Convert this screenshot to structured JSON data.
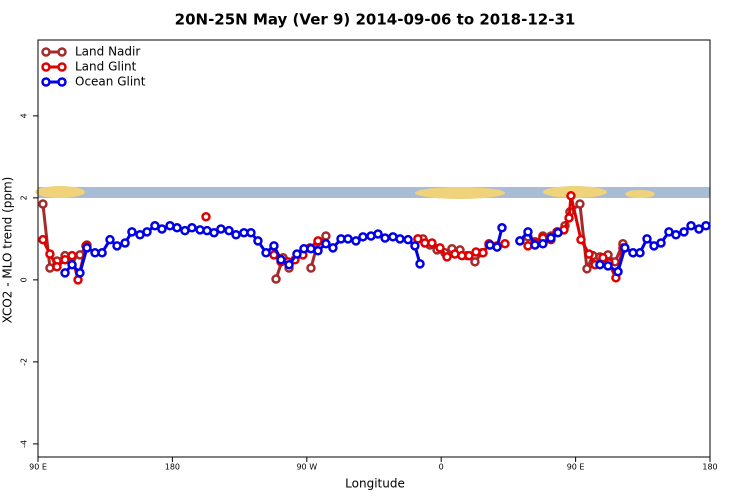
{
  "chart_data": {
    "type": "line",
    "title": "20N-25N May (Ver 9)   2014-09-06 to 2018-12-31",
    "x_label": "Longitude",
    "y_label": "XCO2 - MLO trend (ppm)",
    "xlim": [
      90,
      540
    ],
    "xticks": [
      {
        "value": 90,
        "label": "90 E"
      },
      {
        "value": 180,
        "label": "180"
      },
      {
        "value": 270,
        "label": "90 W"
      },
      {
        "value": 360,
        "label": "0"
      },
      {
        "value": 450,
        "label": "90 E"
      },
      {
        "value": 540,
        "label": "180"
      }
    ],
    "ylim": [
      -4.32,
      5.85
    ],
    "yticks": [
      -4,
      -2,
      0,
      2,
      4
    ],
    "legend": "top-left",
    "series": [
      {
        "name": "Land Nadir",
        "color": "#a52a2a",
        "x": [
          93.3,
          98.0,
          102.7,
          108.1,
          112.8,
          118.1,
          122.8,
          200,
          249.4,
          254.1,
          258.1,
          265,
          272.8,
          277.5,
          282.8,
          350,
          344.4,
          347.8,
          352.5,
          357.2,
          362.5,
          367.2,
          372.6,
          377.3,
          382.6,
          387.3,
          392.0,
          400,
          412.7,
          418.1,
          422.8,
          428.1,
          433.5,
          438.2,
          442.9,
          446.2,
          452.9,
          457.6,
          461.6,
          466.3,
          471.7,
          476.4,
          481.7
        ],
        "values": [
          1.85,
          0.29,
          0.46,
          0.59,
          0.54,
          0.61,
          0.85,
          null,
          0.02,
          0.54,
          0.29,
          null,
          0.29,
          0.93,
          1.07,
          null,
          1.0,
          1.0,
          0.85,
          0.73,
          0.66,
          0.76,
          0.73,
          0.59,
          0.44,
          0.66,
          0.85,
          null,
          0.95,
          1.05,
          0.93,
          1.07,
          1.07,
          1.17,
          1.32,
          1.66,
          1.85,
          0.27,
          0.59,
          0.56,
          0.61,
          0.44,
          0.88
        ]
      },
      {
        "name": "Land Glint",
        "color": "#e00000",
        "x": [
          93.3,
          98.0,
          102.7,
          108.1,
          112.8,
          116.8,
          122.1,
          150,
          202.5,
          230,
          248.0,
          252.7,
          257.4,
          262.1,
          267.4,
          272.1,
          277.5,
          340,
          344.4,
          349.1,
          353.8,
          359.2,
          363.9,
          369.2,
          373.9,
          378.6,
          383.3,
          388.0,
          392.0,
          397.4,
          402.7,
          410,
          418.1,
          423.5,
          428.1,
          433.5,
          437.5,
          442.2,
          445.6,
          446.9,
          453.6,
          459.0,
          463.0,
          468.3,
          472.3,
          477.0,
          481.7
        ],
        "values": [
          0.98,
          0.63,
          0.32,
          0.49,
          0.59,
          0.0,
          0.83,
          null,
          1.54,
          null,
          0.61,
          0.44,
          0.44,
          0.49,
          0.61,
          0.78,
          0.95,
          null,
          1.0,
          0.9,
          0.9,
          0.78,
          0.56,
          0.63,
          0.59,
          0.59,
          0.68,
          0.66,
          0.88,
          0.83,
          0.88,
          null,
          0.83,
          0.9,
          1.02,
          0.98,
          1.17,
          1.22,
          1.51,
          2.05,
          0.98,
          0.63,
          0.37,
          0.54,
          0.41,
          0.05,
          0.78
        ]
      },
      {
        "name": "Ocean Glint",
        "color": "#0000e6",
        "x": [
          108.1,
          112.8,
          118.1,
          122.8,
          128.2,
          132.9,
          138.2,
          142.9,
          148.3,
          152.9,
          158.3,
          163.0,
          168.3,
          173.0,
          178.4,
          183.1,
          188.4,
          193.1,
          198.5,
          203.2,
          207.9,
          212.5,
          217.9,
          222.6,
          227.9,
          232.6,
          237.3,
          242.7,
          248.0,
          252.7,
          258.1,
          263.4,
          268.1,
          272.8,
          277.5,
          282.8,
          287.5,
          292.9,
          297.6,
          302.9,
          307.6,
          313.0,
          317.7,
          322.4,
          327.7,
          332.4,
          337.8,
          342.4,
          345.8,
          370,
          392.7,
          397.4,
          400.7,
          406,
          412.7,
          418.1,
          422.8,
          428.1,
          433.5,
          438.2,
          450,
          466.3,
          471.7,
          478.4,
          483.0,
          488.4,
          493.1,
          497.8,
          502.5,
          507.2,
          512.5,
          517.2,
          522.6,
          527.3,
          532.6,
          537.3
        ],
        "values": [
          0.17,
          0.37,
          0.17,
          0.78,
          0.66,
          0.66,
          0.98,
          0.83,
          0.9,
          1.17,
          1.1,
          1.17,
          1.32,
          1.24,
          1.32,
          1.27,
          1.2,
          1.27,
          1.22,
          1.2,
          1.15,
          1.24,
          1.2,
          1.1,
          1.15,
          1.15,
          0.95,
          0.66,
          0.83,
          0.49,
          0.37,
          0.63,
          0.76,
          0.76,
          0.71,
          0.88,
          0.78,
          1.0,
          1.0,
          0.95,
          1.05,
          1.07,
          1.12,
          1.02,
          1.05,
          1.0,
          0.98,
          0.83,
          0.39,
          null,
          0.85,
          0.8,
          1.27,
          null,
          0.95,
          1.17,
          0.85,
          0.88,
          1.02,
          1.15,
          null,
          0.37,
          0.34,
          0.2,
          0.78,
          0.66,
          0.66,
          1.0,
          0.83,
          0.9,
          1.17,
          1.1,
          1.17,
          1.32,
          1.24,
          1.32
        ]
      }
    ]
  }
}
